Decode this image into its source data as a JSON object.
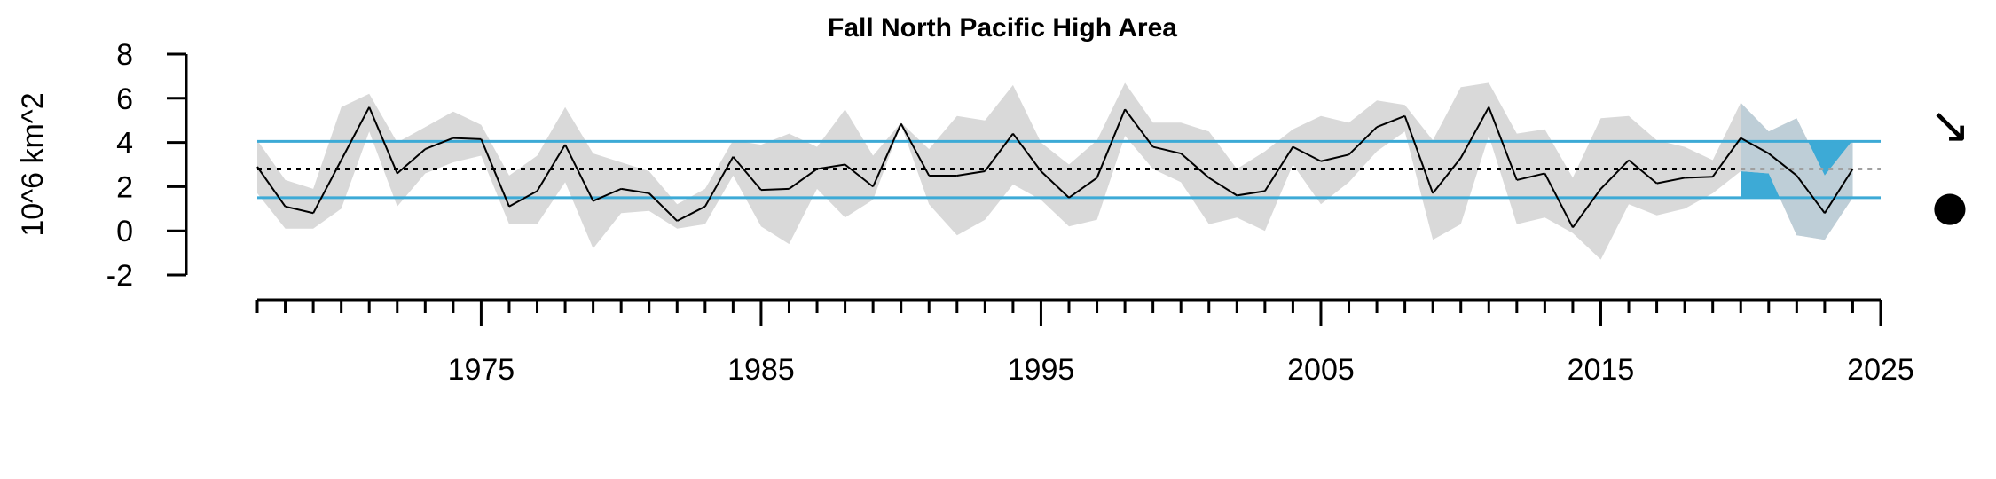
{
  "chart_data": {
    "type": "line",
    "title": "Fall North Pacific High Area",
    "ylabel": "10^6 km^2",
    "xlabel": "",
    "ylim": [
      -2,
      8
    ],
    "yticks": [
      8,
      6,
      4,
      2,
      0,
      -2
    ],
    "xlim": [
      1967,
      2025
    ],
    "xticks_major": [
      1975,
      1985,
      1995,
      2005,
      2015,
      2025
    ],
    "mean": 2.8,
    "sd_upper": 4.05,
    "sd_lower": 1.5,
    "recent_window": [
      2020,
      2024
    ],
    "trend_symbol": "↘",
    "mean_symbol": "●",
    "colors": {
      "line": "#000000",
      "band": "#d9d9d9",
      "sd_lines": "#3daad6",
      "recent_fill": "#3daad6",
      "recent_band": "#b8cbd6",
      "mean_line": "#000000",
      "mean_line_recent": "#a0a0a0"
    },
    "series": [
      {
        "x": [
          1967,
          1968,
          1969,
          1970,
          1971,
          1972,
          1973,
          1974,
          1975,
          1976,
          1977,
          1978,
          1979,
          1980,
          1981,
          1982,
          1983,
          1984,
          1985,
          1986,
          1987,
          1988,
          1989,
          1990,
          1991,
          1992,
          1993,
          1994,
          1995,
          1996,
          1997,
          1998,
          1999,
          2000,
          2001,
          2002,
          2003,
          2004,
          2005,
          2006,
          2007,
          2008,
          2009,
          2010,
          2011,
          2012,
          2013,
          2014,
          2015,
          2016,
          2017,
          2018,
          2019,
          2020,
          2021,
          2022,
          2023,
          2024
        ],
        "values": [
          2.9,
          1.1,
          0.8,
          3.2,
          5.6,
          2.6,
          3.7,
          4.2,
          4.15,
          1.1,
          1.8,
          3.9,
          1.35,
          1.9,
          1.7,
          0.45,
          1.1,
          3.35,
          1.85,
          1.9,
          2.8,
          3.0,
          2.0,
          4.85,
          2.5,
          2.5,
          2.7,
          4.4,
          2.7,
          1.5,
          2.4,
          5.5,
          3.8,
          3.5,
          2.4,
          1.6,
          1.8,
          3.8,
          3.15,
          3.45,
          4.7,
          5.2,
          1.7,
          3.3,
          5.6,
          2.3,
          2.6,
          0.15,
          1.9,
          3.2,
          2.15,
          2.4,
          2.45,
          4.2,
          3.5,
          2.5,
          0.8,
          2.8
        ],
        "upper": [
          4.1,
          2.3,
          1.9,
          5.6,
          6.2,
          4.0,
          4.7,
          5.4,
          4.8,
          2.5,
          3.4,
          5.6,
          3.5,
          3.1,
          2.7,
          1.2,
          1.9,
          4.1,
          3.9,
          4.4,
          3.8,
          5.5,
          3.4,
          4.9,
          3.7,
          5.2,
          5.0,
          6.6,
          4.0,
          3.0,
          4.1,
          6.7,
          4.9,
          4.9,
          4.5,
          2.8,
          3.6,
          4.6,
          5.2,
          4.9,
          5.9,
          5.7,
          4.1,
          6.5,
          6.7,
          4.4,
          4.6,
          2.4,
          5.1,
          5.2,
          4.1,
          3.8,
          3.2,
          5.8,
          4.5,
          5.1,
          2.5,
          4.1
        ]
      },
      {
        "name": "lower_band",
        "values": [
          1.7,
          0.1,
          0.1,
          1.0,
          4.5,
          1.1,
          2.6,
          3.1,
          3.4,
          0.3,
          0.3,
          2.2,
          -0.8,
          0.8,
          0.9,
          0.1,
          0.3,
          2.5,
          0.2,
          -0.6,
          1.9,
          0.6,
          1.4,
          4.8,
          1.2,
          -0.2,
          0.5,
          2.1,
          1.4,
          0.2,
          0.5,
          4.3,
          2.8,
          2.2,
          0.3,
          0.6,
          0.0,
          3.0,
          1.2,
          2.2,
          3.6,
          4.5,
          -0.4,
          0.3,
          4.3,
          0.3,
          0.6,
          -0.1,
          -1.3,
          1.2,
          0.7,
          1.0,
          1.7,
          2.7,
          2.6,
          -0.2,
          -0.4,
          1.5
        ]
      }
    ]
  }
}
